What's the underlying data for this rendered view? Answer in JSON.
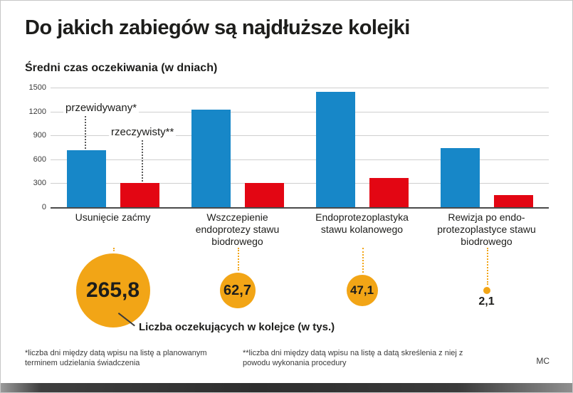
{
  "title": "Do jakich zabiegów są najdłuższe kolejki",
  "subtitle": "Średni czas oczekiwania (w dniach)",
  "legend": {
    "predicted_label": "przewidywany*",
    "actual_label": "rzeczywisty**"
  },
  "chart_data": {
    "type": "bar",
    "title": "Średni czas oczekiwania (w dniach)",
    "xlabel": "",
    "ylabel": "",
    "ylim": [
      0,
      1500
    ],
    "yticks": [
      0,
      300,
      600,
      900,
      1200,
      1500
    ],
    "grid": true,
    "legend_position": "upper-left-annotations",
    "categories": [
      "Usunięcie zaćmy",
      "Wszczepienie endoprotezy stawu biodrowego",
      "Endoprotezoplastyka stawu kolanowego",
      "Rewizja po endo-protezoplastyce stawu biodrowego"
    ],
    "series": [
      {
        "name": "przewidywany*",
        "color": "#1787c8",
        "values": [
          710,
          1220,
          1450,
          740
        ]
      },
      {
        "name": "rzeczywisty**",
        "color": "#e30613",
        "values": [
          300,
          300,
          370,
          150
        ]
      }
    ]
  },
  "queue": {
    "label": "Liczba oczekujących w kolejce (w tys.)",
    "color": "#f2a516",
    "values": [
      "265,8",
      "62,7",
      "47,1",
      "2,1"
    ],
    "values_num": [
      265.8,
      62.7,
      47.1,
      2.1
    ]
  },
  "footnotes": {
    "first": "*liczba dni między datą wpisu na listę a planowanym terminem udzielania świadczenia",
    "second": "**liczba dni między datą wpisu na listę a datą skreślenia z niej z powodu wykonania procedury"
  },
  "credit": "MC"
}
